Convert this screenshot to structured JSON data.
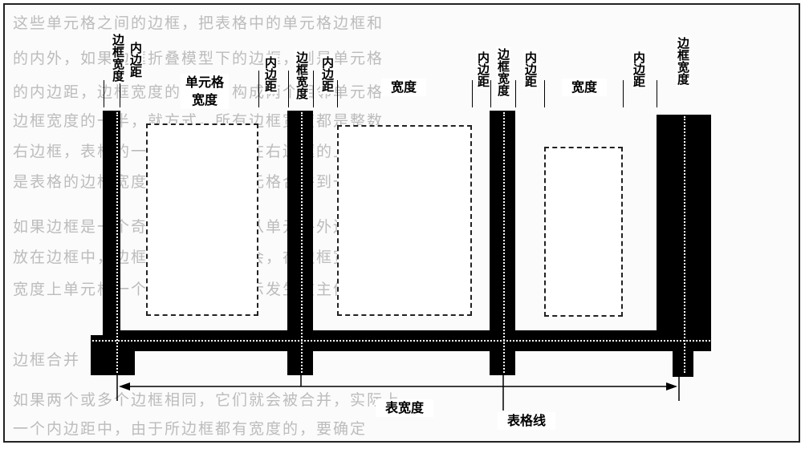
{
  "labels": {
    "border_width_1": "边框宽度",
    "padding_1": "内边距",
    "cell_width": "单元格\n宽度",
    "padding_2": "内边距",
    "border_width_2": "边框宽度",
    "padding_3": "内边距",
    "width_1": "宽度",
    "padding_4": "内边距",
    "border_width_3": "边框宽度",
    "padding_5": "内边距",
    "width_2": "宽度",
    "padding_6": "内边距",
    "border_width_4": "边框宽度",
    "table_width": "表宽度",
    "table_line": "表格线"
  },
  "background_text": [
    "这些单元格之间的边框，把表格中的单元格边框和",
    "的内外，如果边框折叠模型下的边框，则是单元格",
    "的内边距，边框宽度的一半，构成两个相邻单元格",
    "边框宽度的一半，就方式，所有边框宽度都是整数",
    "右边框，表格的一个单元格边框在右边框的上一行",
    "是表格的边框宽度，则这两个单元格合并到一个中",
    "如果边框是一个奇数，一个就会从单元格外边，行",
    "放在边框中，边框在单元格上都会，在边框宽度处",
    "宽度上单元格一个像素，这个显示发生在主值中",
    "边框合并",
    "如果两个或多个边框相同，它们就会被合并，实际上",
    "一个内边距中，由于所边框都有宽度的，要确定"
  ]
}
